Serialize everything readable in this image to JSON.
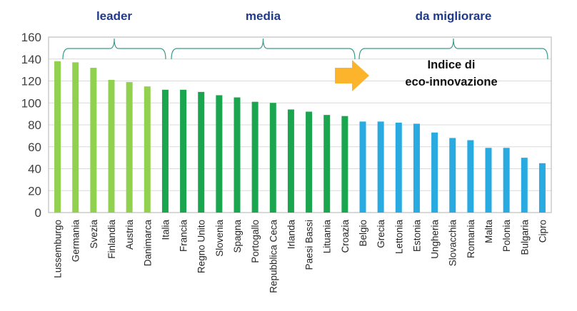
{
  "chart_data": {
    "type": "bar",
    "title": "Indice di eco-innovazione",
    "title_lines": [
      "Indice di",
      "eco-innovazione"
    ],
    "xlabel": "",
    "ylabel": "",
    "ylim": [
      0,
      160
    ],
    "yticks": [
      0,
      20,
      40,
      60,
      80,
      100,
      120,
      140,
      160
    ],
    "grid": true,
    "categories": [
      "Lussemburgo",
      "Germania",
      "Svezia",
      "Finlandia",
      "Austria",
      "Danimarca",
      "Italia",
      "Francia",
      "Regno Unito",
      "Slovenia",
      "Spagna",
      "Portogallo",
      "Repubblica Ceca",
      "Irlanda",
      "Paesi Bassi",
      "Lituania",
      "Croazia",
      "Belgio",
      "Grecia",
      "Lettonia",
      "Estonia",
      "Ungheria",
      "Slovacchia",
      "Romania",
      "Malta",
      "Polonia",
      "Bulgaria",
      "Cipro"
    ],
    "values": [
      138,
      137,
      132,
      121,
      119,
      115,
      112,
      112,
      110,
      107,
      105,
      101,
      100,
      94,
      92,
      89,
      88,
      83,
      83,
      82,
      81,
      73,
      68,
      66,
      59,
      59,
      50,
      45
    ],
    "groups": [
      {
        "name": "leader",
        "from": 0,
        "to": 5,
        "color": "#92d050"
      },
      {
        "name": "media",
        "from": 6,
        "to": 16,
        "color": "#1aa64f"
      },
      {
        "name": "da migliorare",
        "from": 17,
        "to": 27,
        "color": "#29abe2"
      }
    ],
    "group_label_color": "#1f3a8a",
    "brace_color": "#3a9a8a",
    "arrow_color": "#fbb42c"
  }
}
